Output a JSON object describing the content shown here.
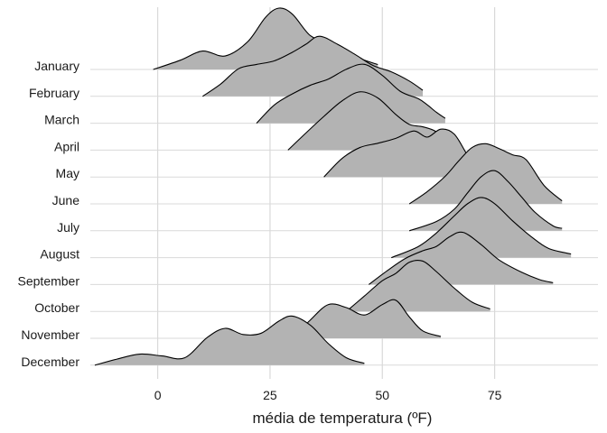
{
  "chart_data": {
    "type": "ridgeline",
    "xlabel": "média de temperatura (ºF)",
    "ylabel": "",
    "title": "",
    "xlim": [
      -15,
      98
    ],
    "x_ticks": [
      0,
      25,
      50,
      75
    ],
    "grid": true,
    "fill_color": "#b3b3b3",
    "line_color": "#000000",
    "grid_color": "#d9d9d9",
    "categories": [
      "January",
      "February",
      "March",
      "April",
      "May",
      "June",
      "July",
      "August",
      "September",
      "October",
      "November",
      "December"
    ],
    "series": [
      {
        "name": "January",
        "x": [
          -1,
          5,
          10,
          15,
          20,
          24,
          27,
          30,
          34,
          38,
          41,
          45,
          49
        ],
        "density": [
          0,
          0.15,
          0.3,
          0.22,
          0.45,
          0.85,
          1.0,
          0.9,
          0.55,
          0.45,
          0.33,
          0.18,
          0.08
        ]
      },
      {
        "name": "February",
        "x": [
          10,
          14,
          18,
          22,
          26,
          30,
          33,
          36,
          40,
          44,
          48,
          52,
          56,
          59
        ],
        "density": [
          0,
          0.2,
          0.45,
          0.52,
          0.58,
          0.72,
          0.85,
          0.98,
          0.85,
          0.68,
          0.5,
          0.4,
          0.25,
          0.1
        ]
      },
      {
        "name": "March",
        "x": [
          22,
          26,
          30,
          34,
          38,
          42,
          46,
          50,
          54,
          58,
          60,
          62,
          64
        ],
        "density": [
          0,
          0.3,
          0.48,
          0.62,
          0.72,
          0.88,
          0.96,
          0.78,
          0.52,
          0.4,
          0.3,
          0.18,
          0.08
        ]
      },
      {
        "name": "April",
        "x": [
          29,
          33,
          37,
          41,
          45,
          49,
          53,
          56,
          59,
          62,
          65
        ],
        "density": [
          0,
          0.28,
          0.55,
          0.8,
          0.95,
          0.85,
          0.58,
          0.42,
          0.38,
          0.3,
          0.1
        ]
      },
      {
        "name": "May",
        "x": [
          37,
          41,
          45,
          49,
          53,
          57,
          60,
          63,
          66,
          69,
          72
        ],
        "density": [
          0,
          0.3,
          0.48,
          0.55,
          0.63,
          0.75,
          0.65,
          0.78,
          0.7,
          0.35,
          0.05
        ]
      },
      {
        "name": "June",
        "x": [
          56,
          60,
          64,
          67,
          70,
          73,
          76,
          79,
          82,
          86,
          90
        ],
        "density": [
          0,
          0.2,
          0.45,
          0.7,
          0.92,
          0.98,
          0.9,
          0.8,
          0.72,
          0.3,
          0.05
        ]
      },
      {
        "name": "July",
        "x": [
          56,
          62,
          66,
          69,
          72,
          75,
          78,
          81,
          84,
          88,
          90
        ],
        "density": [
          0,
          0.15,
          0.35,
          0.62,
          0.88,
          0.98,
          0.8,
          0.55,
          0.3,
          0.08,
          0.04
        ]
      },
      {
        "name": "August",
        "x": [
          52,
          58,
          62,
          66,
          69,
          72,
          75,
          79,
          83,
          87,
          92
        ],
        "density": [
          0,
          0.18,
          0.4,
          0.68,
          0.88,
          0.98,
          0.88,
          0.6,
          0.35,
          0.15,
          0.06
        ]
      },
      {
        "name": "September",
        "x": [
          47,
          51,
          55,
          59,
          62,
          65,
          68,
          72,
          76,
          81,
          85,
          88
        ],
        "density": [
          0,
          0.22,
          0.42,
          0.55,
          0.62,
          0.78,
          0.85,
          0.65,
          0.4,
          0.2,
          0.08,
          0.03
        ]
      },
      {
        "name": "October",
        "x": [
          42,
          46,
          50,
          53,
          56,
          59,
          62,
          66,
          70,
          74
        ],
        "density": [
          0,
          0.25,
          0.5,
          0.62,
          0.8,
          0.82,
          0.65,
          0.38,
          0.15,
          0.04
        ]
      },
      {
        "name": "November",
        "x": [
          30,
          34,
          38,
          42,
          46,
          50,
          53,
          56,
          59,
          63
        ],
        "density": [
          0,
          0.3,
          0.55,
          0.5,
          0.38,
          0.55,
          0.62,
          0.35,
          0.12,
          0.03
        ]
      },
      {
        "name": "December",
        "x": [
          -14,
          -9,
          -4,
          1,
          6,
          11,
          15,
          19,
          23,
          27,
          30,
          34,
          38,
          42,
          46
        ],
        "density": [
          0,
          0.1,
          0.18,
          0.15,
          0.12,
          0.45,
          0.6,
          0.5,
          0.52,
          0.72,
          0.8,
          0.65,
          0.35,
          0.12,
          0.03
        ]
      }
    ]
  }
}
